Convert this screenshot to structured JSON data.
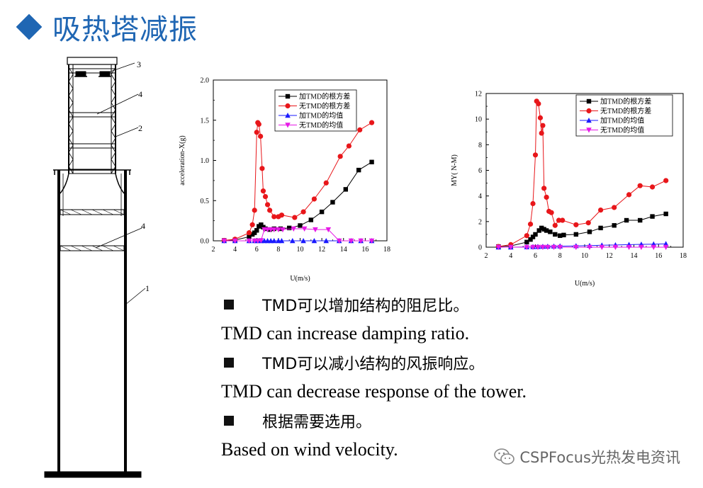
{
  "title": "吸热塔减振",
  "tower_labels": [
    "3",
    "4",
    "2",
    "4",
    "1"
  ],
  "chart_data": [
    {
      "type": "line",
      "ylabel": "acceleration-X(g)",
      "xlabel": "U(m/s)",
      "xlim": [
        2,
        18
      ],
      "ylim": [
        0,
        2.0
      ],
      "xticks": [
        "2",
        "4",
        "6",
        "8",
        "10",
        "12",
        "14",
        "16",
        "18"
      ],
      "yticks": [
        "0.0",
        "0.5",
        "1.0",
        "1.5",
        "2.0"
      ],
      "legend_position": "top-right",
      "series": [
        {
          "name": "加TMD的根方差",
          "color": "#000000",
          "marker": "square",
          "x": [
            3,
            4,
            5.3,
            5.6,
            5.8,
            6.0,
            6.2,
            6.4,
            6.6,
            6.8,
            7.2,
            7.6,
            8.2,
            9.0,
            10.0,
            11.0,
            12.0,
            13.0,
            14.2,
            15.4,
            16.6
          ],
          "y": [
            0.005,
            0.01,
            0.05,
            0.08,
            0.1,
            0.13,
            0.18,
            0.2,
            0.17,
            0.15,
            0.14,
            0.15,
            0.15,
            0.16,
            0.19,
            0.26,
            0.36,
            0.48,
            0.64,
            0.88,
            0.98
          ]
        },
        {
          "name": "无TMD的根方差",
          "color": "#e8161a",
          "marker": "circle",
          "x": [
            3,
            4,
            5.3,
            5.6,
            5.8,
            6.0,
            6.1,
            6.2,
            6.35,
            6.5,
            6.6,
            6.8,
            7.0,
            7.2,
            7.6,
            8.0,
            8.3,
            9.5,
            10.3,
            11.3,
            12.4,
            13.7,
            14.5,
            15.5,
            16.6
          ],
          "y": [
            0.005,
            0.02,
            0.1,
            0.2,
            0.38,
            1.35,
            1.47,
            1.45,
            1.3,
            0.9,
            0.62,
            0.55,
            0.45,
            0.38,
            0.3,
            0.3,
            0.32,
            0.29,
            0.36,
            0.52,
            0.72,
            1.05,
            1.18,
            1.38,
            1.47
          ]
        },
        {
          "name": "加TMD的均值",
          "color": "#1a1aff",
          "marker": "triangle-up",
          "x": [
            3,
            4,
            5.3,
            5.8,
            6.1,
            6.4,
            6.7,
            7.0,
            7.3,
            7.6,
            8.0,
            8.3,
            9.3,
            10.3,
            11.3,
            12.4,
            13.6,
            14.7,
            15.6,
            16.6
          ],
          "y": [
            0,
            0,
            0,
            0,
            0,
            0,
            0,
            0,
            0,
            0,
            0,
            0,
            0,
            0,
            0,
            0,
            0,
            0,
            0,
            0
          ]
        },
        {
          "name": "无TMD的均值",
          "color": "#e61ae6",
          "marker": "triangle-down",
          "x": [
            3,
            4,
            5.3,
            5.8,
            6.1,
            6.4,
            6.7,
            7.0,
            7.3,
            7.6,
            8.0,
            8.4,
            9.4,
            10.4,
            11.4,
            12.6,
            13.6,
            14.7,
            15.6,
            16.6
          ],
          "y": [
            0,
            0,
            0,
            0,
            0,
            0.005,
            0.14,
            0.14,
            0.14,
            0.14,
            0.14,
            0.14,
            0.15,
            0.15,
            0.14,
            0.14,
            0,
            0,
            0,
            0
          ]
        }
      ]
    },
    {
      "type": "line",
      "ylabel": "MY(  N-M)",
      "xlabel": "U(m/s)",
      "xlim": [
        2,
        18
      ],
      "ylim": [
        0,
        12
      ],
      "xticks": [
        "2",
        "4",
        "6",
        "8",
        "10",
        "12",
        "14",
        "16",
        "18"
      ],
      "yticks": [
        "0",
        "2",
        "4",
        "6",
        "8",
        "10",
        "12"
      ],
      "legend_position": "top-right",
      "series": [
        {
          "name": "加TMD的根方差",
          "color": "#000000",
          "marker": "square",
          "x": [
            3,
            4,
            5.3,
            5.6,
            5.8,
            6.0,
            6.3,
            6.5,
            6.7,
            6.9,
            7.2,
            7.6,
            8.0,
            8.3,
            9.3,
            10.4,
            11.3,
            12.4,
            13.4,
            14.5,
            15.5,
            16.6
          ],
          "y": [
            0.05,
            0.1,
            0.4,
            0.6,
            0.8,
            1.0,
            1.3,
            1.5,
            1.4,
            1.3,
            1.2,
            1.0,
            0.9,
            0.95,
            1.0,
            1.2,
            1.5,
            1.7,
            2.1,
            2.1,
            2.4,
            2.6
          ]
        },
        {
          "name": "无TMD的根方差",
          "color": "#e8161a",
          "marker": "circle",
          "x": [
            3,
            4,
            5.3,
            5.6,
            5.8,
            6.0,
            6.1,
            6.25,
            6.4,
            6.5,
            6.6,
            6.7,
            6.9,
            7.1,
            7.3,
            7.6,
            7.9,
            8.2,
            9.3,
            10.3,
            11.3,
            12.4,
            13.6,
            14.5,
            15.5,
            16.6
          ],
          "y": [
            0.05,
            0.2,
            0.9,
            1.8,
            3.4,
            7.2,
            11.4,
            11.2,
            10.1,
            8.9,
            9.5,
            4.6,
            3.9,
            2.8,
            2.7,
            1.7,
            2.1,
            2.1,
            1.75,
            1.9,
            2.9,
            3.1,
            4.1,
            4.8,
            4.7,
            5.2
          ]
        },
        {
          "name": "加TMD的均值",
          "color": "#1a1aff",
          "marker": "triangle-up",
          "x": [
            3,
            4,
            5.3,
            5.8,
            6.2,
            6.6,
            7.0,
            7.5,
            8.0,
            9.3,
            10.4,
            11.4,
            12.5,
            13.6,
            14.6,
            15.6,
            16.6
          ],
          "y": [
            0,
            0,
            0.02,
            0.03,
            0.04,
            0.05,
            0.06,
            0.07,
            0.08,
            0.1,
            0.12,
            0.15,
            0.17,
            0.2,
            0.22,
            0.24,
            0.26
          ]
        },
        {
          "name": "无TMD的均值",
          "color": "#e61ae6",
          "marker": "triangle-down",
          "x": [
            3,
            4,
            5.3,
            5.8,
            6.2,
            6.6,
            7.0,
            7.5,
            8.0,
            9.3,
            10.4,
            11.4,
            12.5,
            13.6,
            14.6,
            15.6,
            16.6
          ],
          "y": [
            0,
            0,
            0,
            0,
            0,
            0,
            0,
            0,
            0,
            0,
            0,
            0,
            0,
            0,
            0,
            0,
            0
          ]
        }
      ]
    }
  ],
  "bullets": [
    {
      "zh": "TMD可以增加结构的阻尼比。",
      "en": "TMD can increase damping ratio."
    },
    {
      "zh": "TMD可以减小结构的风振响应。",
      "en": "TMD can decrease response of the tower."
    },
    {
      "zh": "根据需要选用。",
      "en": "Based on wind velocity."
    }
  ],
  "watermark": "CSPFocus光热发电资讯"
}
